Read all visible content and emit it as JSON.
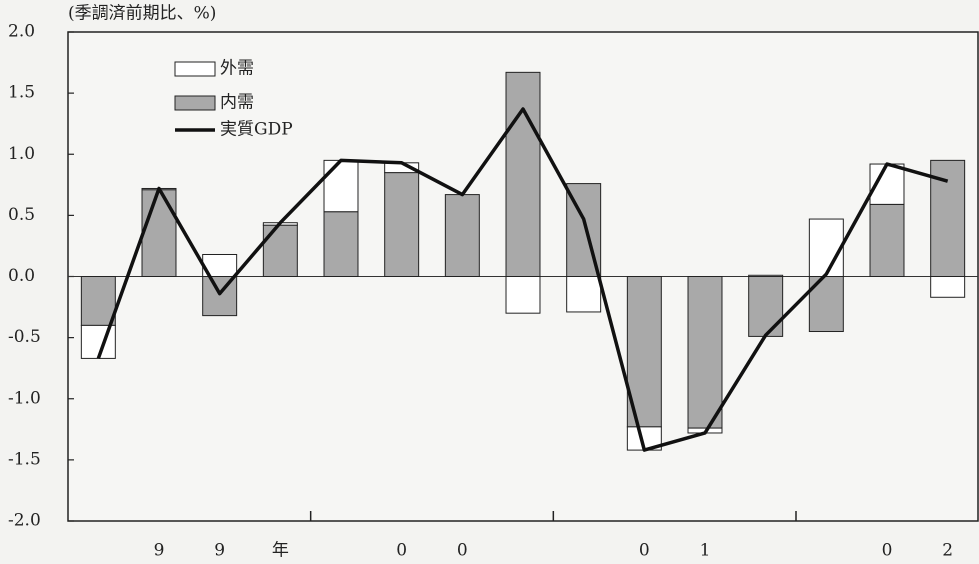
{
  "chart_data": {
    "type": "bar",
    "stacked": true,
    "subtitle": "(季調済前期比、%)",
    "categories": [
      null,
      "9",
      "9",
      "年",
      null,
      "0",
      "0",
      null,
      null,
      "0",
      "1",
      null,
      null,
      "0",
      "2"
    ],
    "series": [
      {
        "name": "外需",
        "color": "#ffffff",
        "type": "bar",
        "values": [
          -0.27,
          0.01,
          0.18,
          0.02,
          0.42,
          0.08,
          0,
          -0.3,
          -0.29,
          -0.19,
          -0.04,
          0.01,
          0.47,
          0.33,
          -0.17
        ]
      },
      {
        "name": "内需",
        "color": "#a9a9a9",
        "type": "bar",
        "values": [
          -0.4,
          0.71,
          -0.32,
          0.42,
          0.53,
          0.85,
          0.67,
          1.67,
          0.76,
          -1.23,
          -1.24,
          -0.49,
          -0.45,
          0.59,
          0.95
        ]
      },
      {
        "name": "実質GDP",
        "color": "#111111",
        "type": "line",
        "values": [
          -0.67,
          0.72,
          -0.14,
          0.44,
          0.95,
          0.93,
          0.67,
          1.37,
          0.47,
          -1.42,
          -1.28,
          -0.48,
          0.02,
          0.92,
          0.78
        ]
      }
    ],
    "ylim": [
      -2,
      2
    ],
    "yticks": [
      {
        "value": -2,
        "label": "-2.0"
      },
      -1.5,
      {
        "value": -1,
        "label": "-1.0"
      },
      -0.5,
      {
        "value": 0,
        "label": "0.0"
      },
      0.5,
      {
        "value": 1,
        "label": "1.0"
      },
      1.5,
      {
        "value": 2,
        "label": "2.0"
      }
    ],
    "grid": false
  }
}
